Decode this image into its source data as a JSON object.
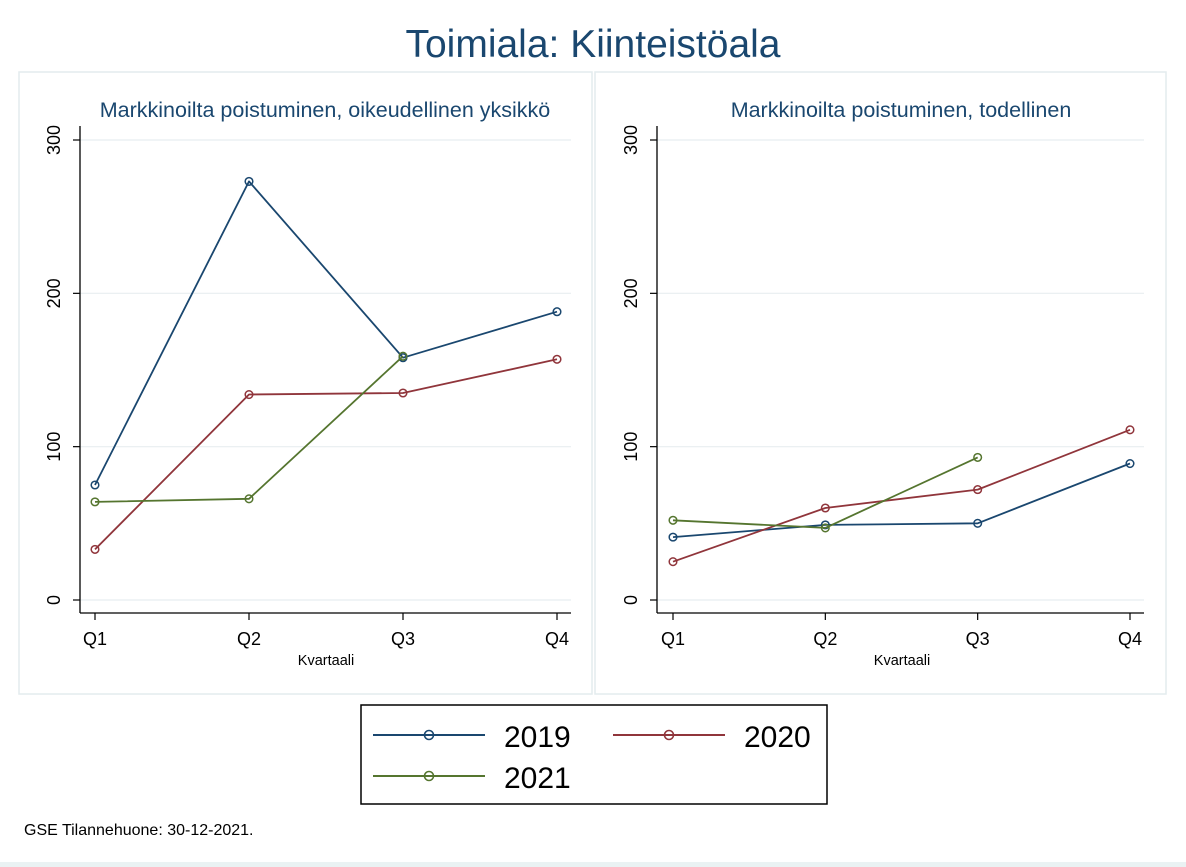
{
  "figure": {
    "title": "Toimiala: Kiinteistöala",
    "note": "GSE Tilannehuone: 30-12-2021."
  },
  "colors": {
    "2019": "#1a476f",
    "2020": "#90353b",
    "2021": "#55752f",
    "grid": "#e8eef0",
    "panel_border": "#e3ecee"
  },
  "legend": {
    "items": [
      "2019",
      "2020",
      "2021"
    ]
  },
  "chart_data": [
    {
      "type": "line",
      "title": "Markkinoilta poistuminen, oikeudellinen yksikkö",
      "xlabel": "Kvartaali",
      "ylabel": "",
      "categories": [
        "Q1",
        "Q2",
        "Q3",
        "Q4"
      ],
      "ylim": [
        0,
        300
      ],
      "yticks": [
        0,
        100,
        200,
        300
      ],
      "series": [
        {
          "name": "2019",
          "values": [
            75,
            273,
            158,
            188
          ]
        },
        {
          "name": "2020",
          "values": [
            33,
            134,
            135,
            157
          ]
        },
        {
          "name": "2021",
          "values": [
            64,
            66,
            159,
            null
          ]
        }
      ]
    },
    {
      "type": "line",
      "title": "Markkinoilta poistuminen, todellinen",
      "xlabel": "Kvartaali",
      "ylabel": "",
      "categories": [
        "Q1",
        "Q2",
        "Q3",
        "Q4"
      ],
      "ylim": [
        0,
        300
      ],
      "yticks": [
        0,
        100,
        200,
        300
      ],
      "series": [
        {
          "name": "2019",
          "values": [
            41,
            49,
            50,
            89
          ]
        },
        {
          "name": "2020",
          "values": [
            25,
            60,
            72,
            111
          ]
        },
        {
          "name": "2021",
          "values": [
            52,
            47,
            93,
            null
          ]
        }
      ]
    }
  ]
}
